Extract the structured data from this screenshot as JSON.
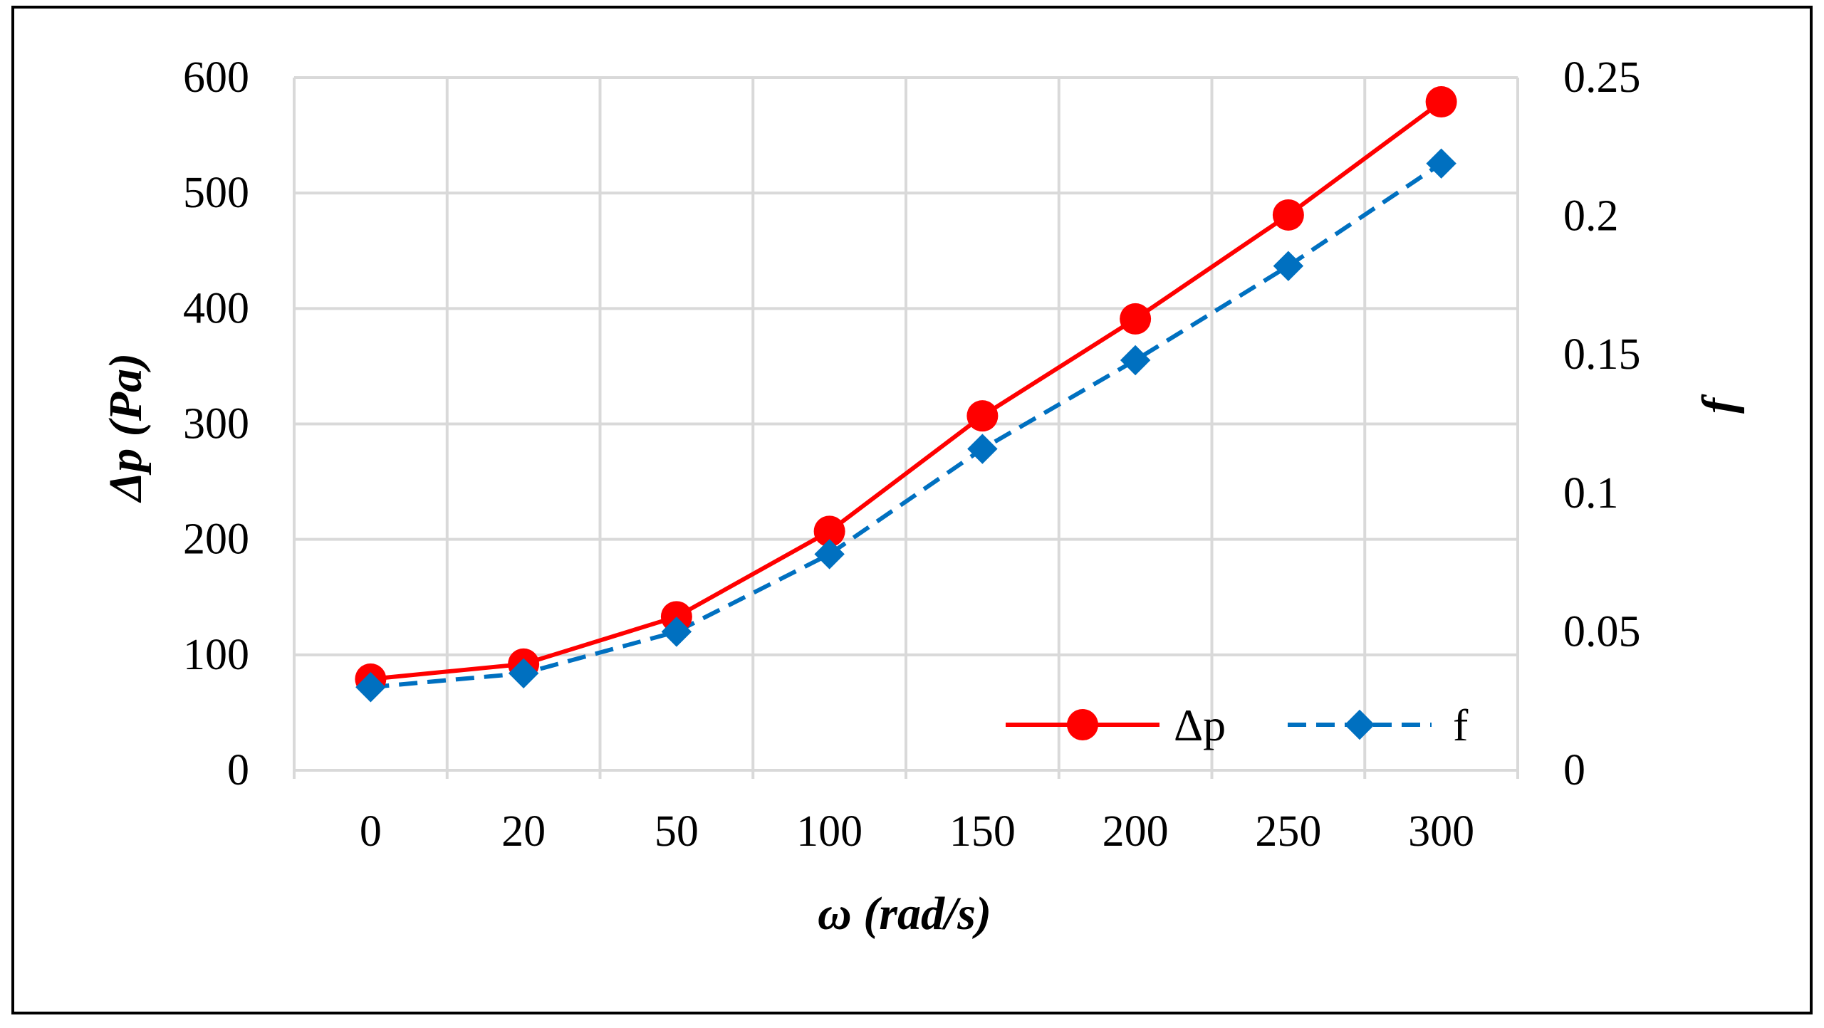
{
  "chart_data": {
    "type": "line",
    "categories": [
      "0",
      "20",
      "50",
      "100",
      "150",
      "200",
      "250",
      "300"
    ],
    "series": [
      {
        "name": "Δp",
        "axis": "left",
        "color": "#ff0000",
        "marker": "circle",
        "line_style": "solid",
        "values": [
          79,
          92,
          133,
          207,
          307,
          391,
          481,
          579
        ]
      },
      {
        "name": "f",
        "axis": "right",
        "color": "#0070c0",
        "marker": "diamond",
        "line_style": "dashed",
        "values": [
          0.03,
          0.035,
          0.05,
          0.078,
          0.116,
          0.148,
          0.182,
          0.219
        ]
      }
    ],
    "xlabel": "ω (rad/s)",
    "ylabel": "Δp (Pa)",
    "y2label": "f",
    "ylim": [
      0,
      600
    ],
    "y2lim": [
      0,
      0.25
    ],
    "yticks": [
      "0",
      "100",
      "200",
      "300",
      "400",
      "500",
      "600"
    ],
    "y2ticks": [
      "0",
      "0.05",
      "0.1",
      "0.15",
      "0.2",
      "0.25"
    ],
    "grid": true,
    "legend_position": "bottom-right"
  }
}
